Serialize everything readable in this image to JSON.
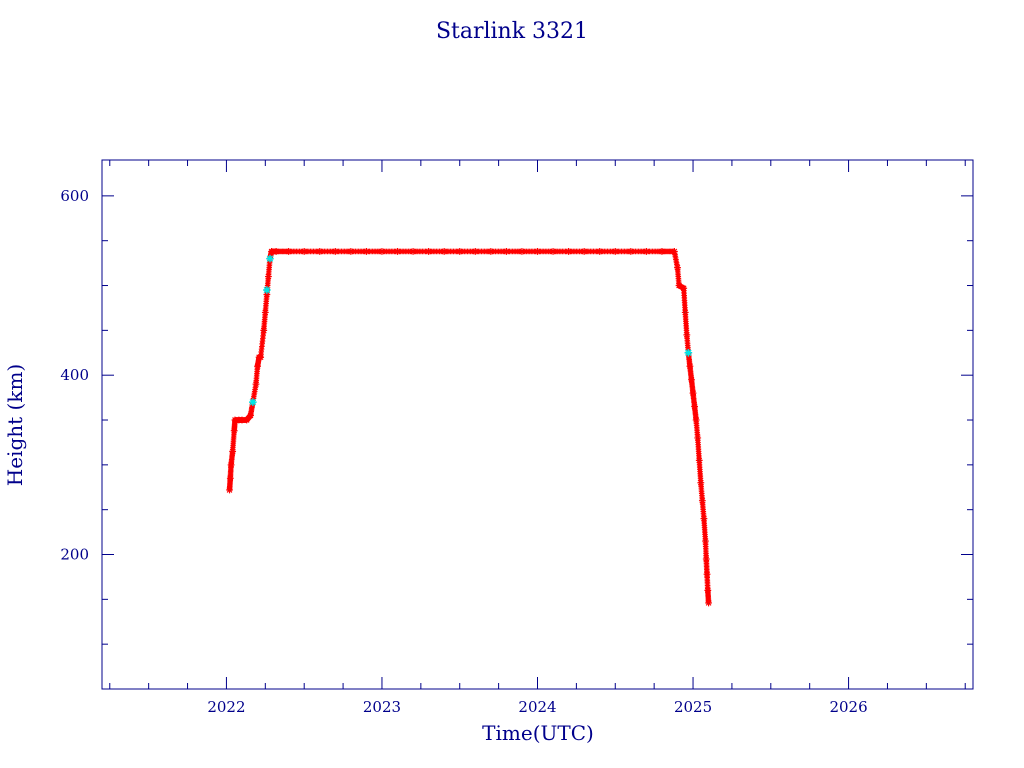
{
  "chart_data": {
    "type": "scatter",
    "title": "Starlink 3321",
    "xlabel": "Time(UTC)",
    "ylabel": "Height (km)",
    "xlim": [
      2021.2,
      2026.8
    ],
    "ylim": [
      50,
      640
    ],
    "xticks": [
      "2022",
      "2023",
      "2024",
      "2025",
      "2026"
    ],
    "yticks": [
      "200",
      "400",
      "600"
    ],
    "grid": false,
    "colors": {
      "axis": "#00008b",
      "series_primary": "#ff0000",
      "series_marker_center": "#444444",
      "series_highlight": "#00e5e5"
    },
    "series": [
      {
        "marker": "star",
        "points": [
          [
            2022.02,
            272
          ],
          [
            2022.025,
            285
          ],
          [
            2022.03,
            300
          ],
          [
            2022.04,
            315
          ],
          [
            2022.05,
            338
          ],
          [
            2022.055,
            350
          ],
          [
            2022.08,
            350
          ],
          [
            2022.1,
            350
          ],
          [
            2022.13,
            350
          ],
          [
            2022.155,
            355
          ],
          [
            2022.17,
            370
          ],
          [
            2022.19,
            390
          ],
          [
            2022.2,
            410
          ],
          [
            2022.21,
            420
          ],
          [
            2022.22,
            420
          ],
          [
            2022.24,
            450
          ],
          [
            2022.25,
            470
          ],
          [
            2022.26,
            490
          ],
          [
            2022.27,
            510
          ],
          [
            2022.28,
            530
          ],
          [
            2022.29,
            538
          ],
          [
            2022.32,
            538
          ],
          [
            2022.4,
            538
          ],
          [
            2022.5,
            538
          ],
          [
            2022.6,
            538
          ],
          [
            2022.7,
            538
          ],
          [
            2022.8,
            538
          ],
          [
            2022.9,
            538
          ],
          [
            2023.0,
            538
          ],
          [
            2023.1,
            538
          ],
          [
            2023.2,
            538
          ],
          [
            2023.3,
            538
          ],
          [
            2023.4,
            538
          ],
          [
            2023.5,
            538
          ],
          [
            2023.6,
            538
          ],
          [
            2023.7,
            538
          ],
          [
            2023.8,
            538
          ],
          [
            2023.9,
            538
          ],
          [
            2024.0,
            538
          ],
          [
            2024.1,
            538
          ],
          [
            2024.2,
            538
          ],
          [
            2024.3,
            538
          ],
          [
            2024.4,
            538
          ],
          [
            2024.5,
            538
          ],
          [
            2024.6,
            538
          ],
          [
            2024.7,
            538
          ],
          [
            2024.8,
            538
          ],
          [
            2024.88,
            538
          ],
          [
            2024.9,
            520
          ],
          [
            2024.91,
            500
          ],
          [
            2024.94,
            497
          ],
          [
            2024.95,
            470
          ],
          [
            2024.96,
            445
          ],
          [
            2024.97,
            425
          ],
          [
            2024.98,
            410
          ],
          [
            2024.99,
            395
          ],
          [
            2025.0,
            380
          ],
          [
            2025.01,
            365
          ],
          [
            2025.02,
            350
          ],
          [
            2025.03,
            330
          ],
          [
            2025.04,
            305
          ],
          [
            2025.05,
            280
          ],
          [
            2025.06,
            260
          ],
          [
            2025.07,
            240
          ],
          [
            2025.08,
            215
          ],
          [
            2025.085,
            195
          ],
          [
            2025.09,
            178
          ],
          [
            2025.095,
            160
          ],
          [
            2025.1,
            146
          ]
        ],
        "highlight_points": [
          [
            2022.17,
            370
          ],
          [
            2022.26,
            495
          ],
          [
            2022.28,
            530
          ],
          [
            2024.97,
            425
          ]
        ]
      }
    ]
  }
}
